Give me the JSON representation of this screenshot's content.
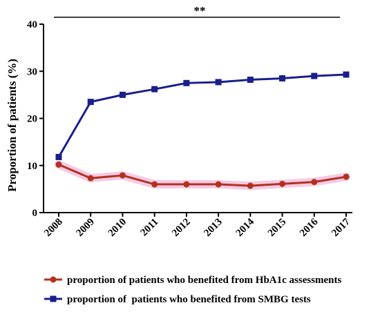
{
  "chart_data": {
    "type": "line",
    "ylabel": "Proportion of patients (%)",
    "xlabel": "",
    "ylim": [
      0,
      40
    ],
    "yticks": [
      0,
      10,
      20,
      30,
      40
    ],
    "x": [
      "2008",
      "2009",
      "2010",
      "2011",
      "2012",
      "2013",
      "2014",
      "2015",
      "2016",
      "2017"
    ],
    "significance": "**",
    "grid": false,
    "legend_position": "bottom",
    "series": [
      {
        "name": "proportion of patients who benefited from HbA1c assessments",
        "marker": "circle",
        "color": "#b3311e",
        "band_color": "#f2b8dc",
        "values": [
          10.2,
          7.3,
          7.9,
          6.0,
          6.0,
          6.0,
          5.7,
          6.1,
          6.5,
          7.6
        ]
      },
      {
        "name": "proportion of  patients who benefited from SMBG tests",
        "marker": "square",
        "color": "#1a1f8c",
        "values": [
          11.8,
          23.5,
          25.0,
          26.2,
          27.5,
          27.7,
          28.2,
          28.5,
          29.0,
          29.3
        ]
      }
    ]
  }
}
